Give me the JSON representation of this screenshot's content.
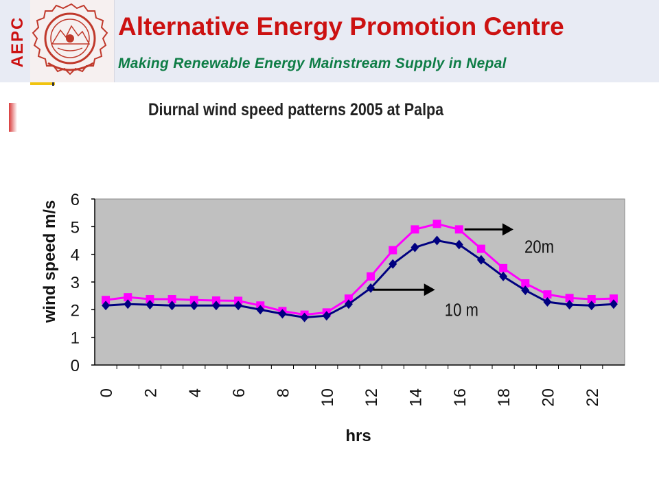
{
  "header": {
    "brand": "AEPC",
    "title": "Alternative Energy Promotion Centre",
    "subtitle": "Making Renewable Energy Mainstream Supply in Nepal"
  },
  "chart_data": {
    "type": "line",
    "title": "Diurnal wind speed patterns 2005 at Palpa",
    "xlabel": "hrs",
    "ylabel": "wind speed m/s",
    "x": [
      0,
      1,
      2,
      3,
      4,
      5,
      6,
      7,
      8,
      9,
      10,
      11,
      12,
      13,
      14,
      15,
      16,
      17,
      18,
      19,
      20,
      21,
      22,
      23
    ],
    "xticks": [
      0,
      2,
      4,
      6,
      8,
      10,
      12,
      14,
      16,
      18,
      20,
      22
    ],
    "yticks": [
      0,
      1,
      2,
      3,
      4,
      5,
      6
    ],
    "ylim": [
      0,
      6
    ],
    "xlim": [
      -0.5,
      23.5
    ],
    "grid": false,
    "legend": "none",
    "series": [
      {
        "name": "20m",
        "color": "#ff00ff",
        "marker": "square",
        "values": [
          2.35,
          2.45,
          2.38,
          2.38,
          2.35,
          2.33,
          2.32,
          2.15,
          1.95,
          1.82,
          1.9,
          2.4,
          3.2,
          4.15,
          4.9,
          5.1,
          4.9,
          4.2,
          3.5,
          2.95,
          2.55,
          2.42,
          2.38,
          2.4
        ]
      },
      {
        "name": "10 m",
        "color": "#000080",
        "marker": "diamond",
        "values": [
          2.15,
          2.2,
          2.18,
          2.15,
          2.15,
          2.15,
          2.15,
          2.0,
          1.85,
          1.72,
          1.78,
          2.2,
          2.78,
          3.65,
          4.25,
          4.5,
          4.35,
          3.8,
          3.2,
          2.7,
          2.28,
          2.18,
          2.15,
          2.2
        ]
      }
    ],
    "annotations": [
      {
        "text": "20m",
        "x": 18,
        "y": 4.5
      },
      {
        "text": "10 m",
        "x": 16.5,
        "y": 2.15
      }
    ],
    "colors": {
      "plot_bg": "#c0c0c0",
      "axis": "#000000"
    }
  }
}
